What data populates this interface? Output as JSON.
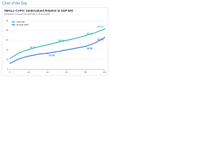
{
  "page_header": "Chart of the Day",
  "chart_data": {
    "type": "line",
    "title": "SMALL-CAPS: Undervalued Relative to S&P 500",
    "subtitle": "Distribution of forward P/E: S&P 500 vs. Russell 2000",
    "x": [
      0,
      10,
      20,
      30,
      40,
      50,
      60,
      70,
      80,
      90,
      100
    ],
    "xlim": [
      0,
      100
    ],
    "xticks": [
      0,
      20,
      40,
      60,
      80,
      100
    ],
    "ylim": [
      5,
      30
    ],
    "yticks": [
      5,
      10,
      15,
      20,
      25,
      30
    ],
    "grid": true,
    "legend": "upper left",
    "series": [
      {
        "name": "S&P 500",
        "color": "#2bb3a6",
        "values": [
          10.5,
          13.5,
          15.2,
          16.5,
          17.6,
          18.8,
          19.9,
          21.0,
          22.3,
          23.8,
          25.7
        ],
        "value_labels": [
          null,
          null,
          "15.2x",
          null,
          null,
          "18.8x",
          null,
          null,
          "22.3x",
          null,
          "25.7x"
        ]
      },
      {
        "name": "Russell 2000",
        "color": "#2f6fd6",
        "values": [
          8.0,
          10.5,
          11.8,
          12.8,
          13.3,
          14.1,
          15.0,
          15.9,
          16.8,
          18.5,
          21.3
        ],
        "value_labels": [
          null,
          null,
          null,
          null,
          "13.3x",
          null,
          null,
          null,
          "16.8x",
          null,
          "21.3x"
        ]
      }
    ]
  }
}
